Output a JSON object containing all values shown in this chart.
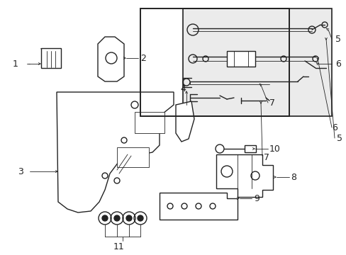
{
  "bg_color": "#ffffff",
  "lc": "#222222",
  "box_bg": "#f0f0f0",
  "lw_main": 1.0,
  "lw_thin": 0.6,
  "fig_w": 4.89,
  "fig_h": 3.6,
  "dpi": 100
}
